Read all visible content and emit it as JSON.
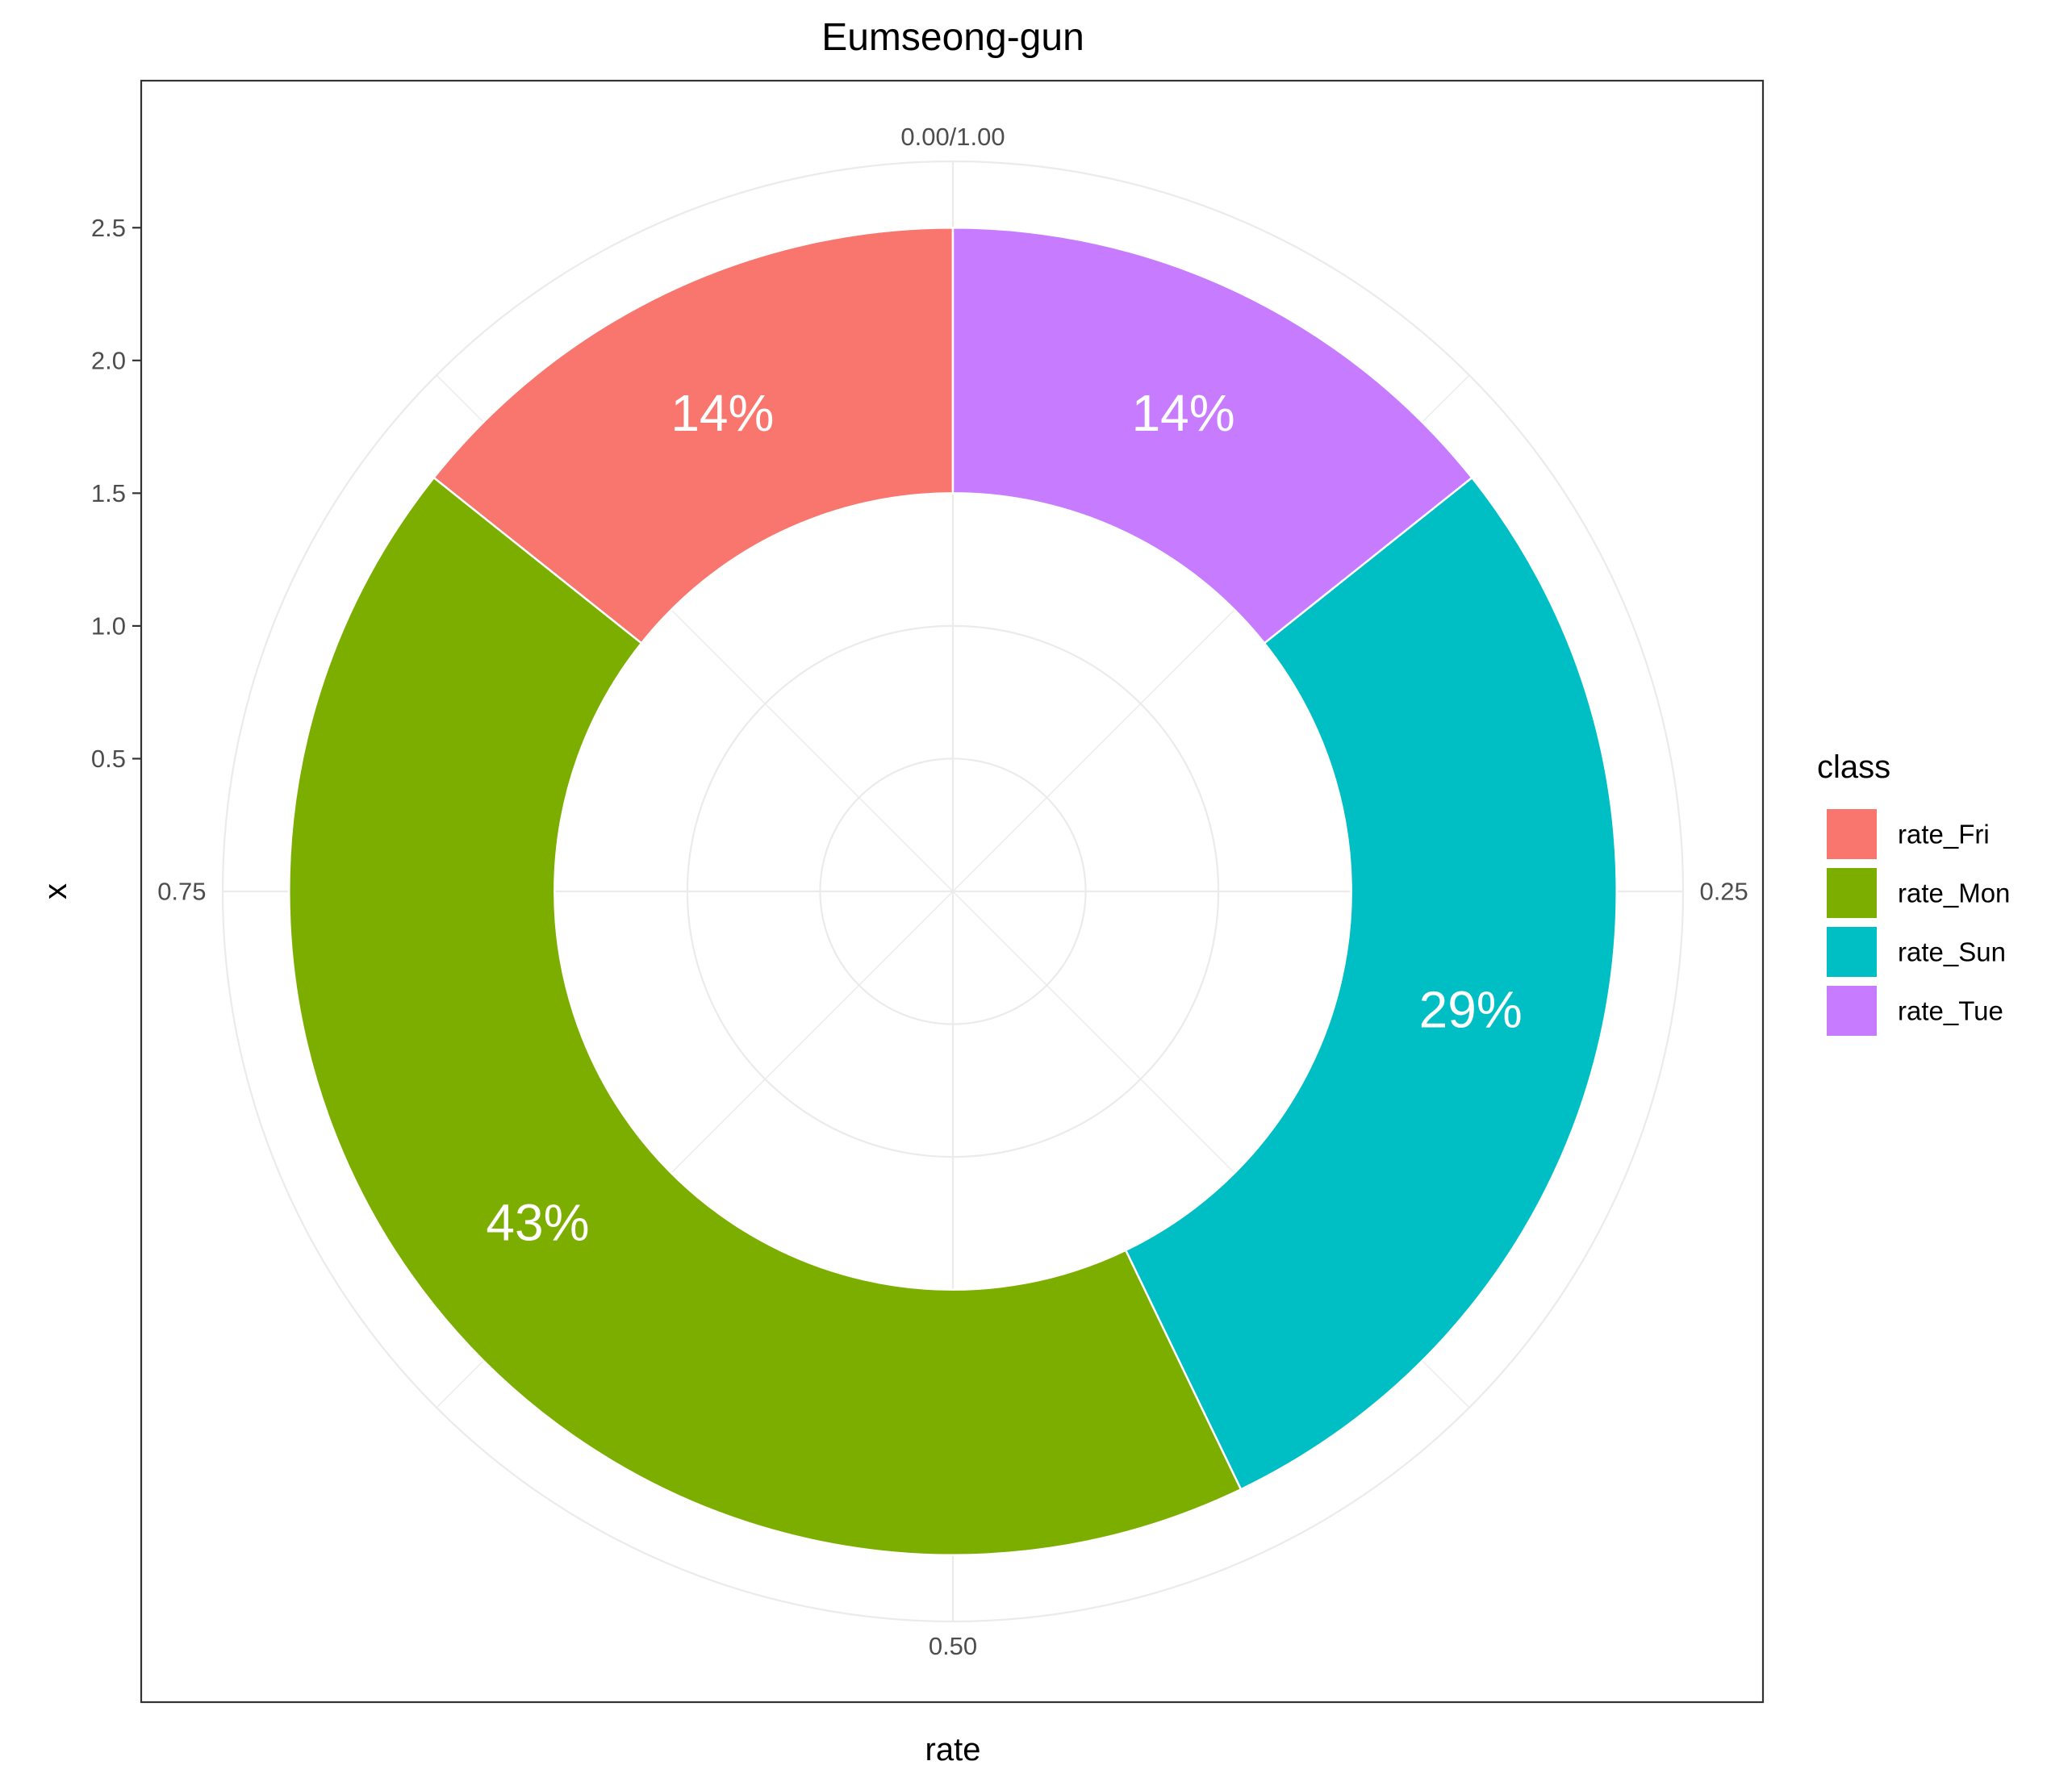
{
  "chart_data": {
    "type": "pie",
    "variant": "donut",
    "title": "Eumseong-gun",
    "xlabel": "rate",
    "ylabel": "x",
    "theta_ticks": [
      "0.00/1.00",
      "0.25",
      "0.50",
      "0.75"
    ],
    "theta_tick_values": [
      0,
      0.25,
      0.5,
      0.75
    ],
    "r_ticks": [
      "0.5",
      "1.0",
      "1.5",
      "2.0",
      "2.5"
    ],
    "r_tick_values": [
      0.5,
      1.0,
      1.5,
      2.0,
      2.5
    ],
    "r_range": [
      0,
      2.75
    ],
    "ring": [
      1.5,
      2.5
    ],
    "label_radius": 2.0,
    "grid": true,
    "legend": {
      "title": "class",
      "position": "right",
      "items": [
        "rate_Fri",
        "rate_Mon",
        "rate_Sun",
        "rate_Tue"
      ]
    },
    "categories": [
      "rate_Fri",
      "rate_Mon",
      "rate_Sun",
      "rate_Tue"
    ],
    "values": [
      0.1429,
      0.4286,
      0.2857,
      0.1429
    ],
    "labels": [
      "14%",
      "43%",
      "29%",
      "14%"
    ],
    "colors": [
      "#F8766D",
      "#7CAE00",
      "#00BFC4",
      "#C77CFF"
    ]
  }
}
